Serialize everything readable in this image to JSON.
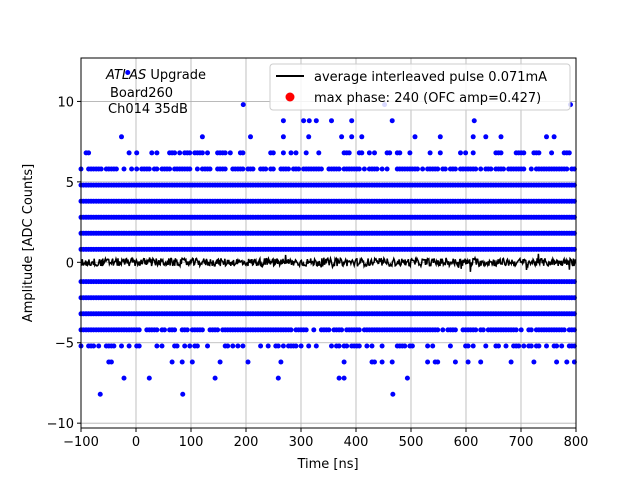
{
  "chart_data": {
    "type": "scatter",
    "xlabel": "Time [ns]",
    "ylabel": "Amplitude [ADC Counts]",
    "xlim": [
      -100,
      800
    ],
    "ylim": [
      -10.3,
      12.7
    ],
    "xticks": [
      -100,
      0,
      100,
      200,
      300,
      400,
      500,
      600,
      700,
      800
    ],
    "yticks": [
      -10,
      -5,
      0,
      5,
      10
    ],
    "grid": true,
    "annotation": {
      "line1_italic": "ATLAS",
      "line1_rest": " Upgrade",
      "line2": "Board260",
      "line3": "Ch014 35dB"
    },
    "legend": {
      "placement": "top-right",
      "entries": [
        {
          "label": "average interleaved pulse 0.071mA",
          "marker": "line",
          "color": "#000000"
        },
        {
          "label": "max phase: 240 (OFC amp=0.427)",
          "marker": "dot",
          "color": "#ff0000"
        }
      ]
    },
    "series": [
      {
        "kind": "scatter",
        "color": "#0000ff",
        "x_range": [
          -100,
          800
        ],
        "levels": [
          {
            "y": 4.8,
            "density": 1.0
          },
          {
            "y": 3.8,
            "density": 1.0
          },
          {
            "y": 2.8,
            "density": 1.0
          },
          {
            "y": 1.8,
            "density": 1.0
          },
          {
            "y": 0.8,
            "density": 1.0
          },
          {
            "y": -1.2,
            "density": 1.0
          },
          {
            "y": -2.2,
            "density": 1.0
          },
          {
            "y": -3.2,
            "density": 1.0
          },
          {
            "y": 5.8,
            "density": 0.75
          },
          {
            "y": -4.2,
            "density": 0.85
          },
          {
            "y": 6.8,
            "density": 0.35
          },
          {
            "y": -5.2,
            "density": 0.4
          },
          {
            "y": -6.2,
            "density": 0.15
          },
          {
            "y": 7.8,
            "density": 0.08
          },
          {
            "y": 8.8,
            "density": 0.03
          },
          {
            "y": -7.2,
            "density": 0.03
          }
        ],
        "outliers": [
          {
            "x": -15,
            "y": 11.8
          },
          {
            "x": 452,
            "y": 9.8
          },
          {
            "x": 790,
            "y": 9.8
          },
          {
            "x": 195,
            "y": 9.8
          },
          {
            "x": 615,
            "y": 8.8
          },
          {
            "x": 315,
            "y": 8.8
          },
          {
            "x": -65,
            "y": -8.2
          },
          {
            "x": 85,
            "y": -8.2
          },
          {
            "x": 467,
            "y": -8.2
          }
        ]
      },
      {
        "kind": "line",
        "name": "average interleaved pulse 0.071mA",
        "color": "#000000",
        "x_range": [
          -100,
          800
        ],
        "y_mean": 0.0,
        "noise": 0.25
      }
    ]
  }
}
